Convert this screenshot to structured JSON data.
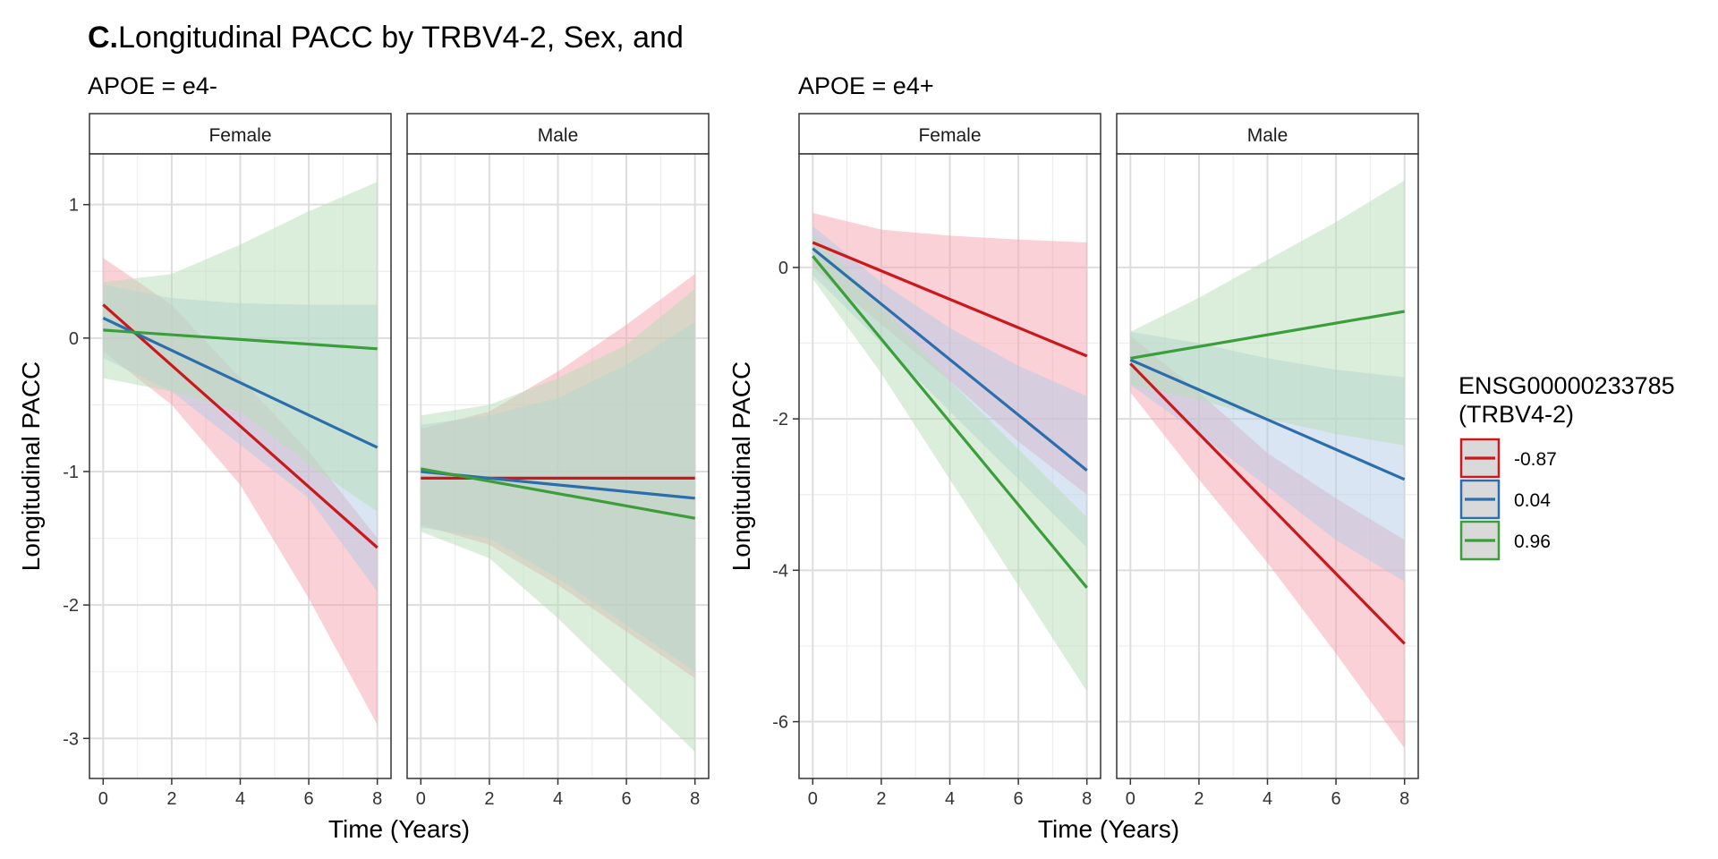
{
  "title_bold": "C.",
  "title_rest": "Longitudinal PACC by TRBV4-2, Sex, and",
  "legend": {
    "title_line1": "ENSG00000233785",
    "title_line2": "(TRBV4-2)",
    "items": [
      {
        "label": "-0.87",
        "color": "#CB181D"
      },
      {
        "label": "0.04",
        "color": "#2C6DAC"
      },
      {
        "label": "0.96",
        "color": "#3A9E3A"
      }
    ]
  },
  "colors": {
    "-0.87": {
      "line": "#CB181D",
      "fill": "#F4A3AE"
    },
    "0.04": {
      "line": "#2C6DAC",
      "fill": "#B3CBE6"
    },
    "0.96": {
      "line": "#3A9E3A",
      "fill": "#B7DDB7"
    },
    "strip_bg": "#FFFFFF",
    "grid_major": "#DDDDDD",
    "grid_minor": "#EEEEEE"
  },
  "chart_data": [
    {
      "type": "line",
      "subtitle": "APOE = e4-",
      "xlabel": "Time (Years)",
      "ylabel": "Longitudinal PACC",
      "xlim": [
        -0.4,
        8.4
      ],
      "ylim": [
        -3.3,
        1.38
      ],
      "x_ticks": [
        0,
        2,
        4,
        6,
        8
      ],
      "y_ticks": [
        1,
        0,
        -1,
        -2,
        -3
      ],
      "y_tick_labels": [
        "1",
        "0",
        "-1",
        "-2",
        "-3"
      ],
      "panels": [
        {
          "strip": "Female",
          "series": [
            {
              "name": "-0.87",
              "x": [
                0,
                8
              ],
              "y": [
                0.25,
                -1.57
              ],
              "band_x": [
                0,
                2,
                4,
                6,
                8
              ],
              "band_lower": [
                -0.1,
                -0.5,
                -1.1,
                -1.95,
                -2.9
              ],
              "band_upper": [
                0.6,
                0.25,
                -0.3,
                -0.85,
                -1.5
              ]
            },
            {
              "name": "0.04",
              "x": [
                0,
                8
              ],
              "y": [
                0.15,
                -0.82
              ],
              "band_x": [
                0,
                2,
                4,
                6,
                8
              ],
              "band_lower": [
                -0.15,
                -0.4,
                -0.8,
                -1.2,
                -1.9
              ],
              "band_upper": [
                0.4,
                0.3,
                0.26,
                0.25,
                0.25
              ]
            },
            {
              "name": "0.96",
              "x": [
                0,
                8
              ],
              "y": [
                0.06,
                -0.08
              ],
              "band_x": [
                0,
                2,
                4,
                6,
                8
              ],
              "band_lower": [
                -0.3,
                -0.4,
                -0.55,
                -0.95,
                -1.3
              ],
              "band_upper": [
                0.42,
                0.48,
                0.7,
                0.95,
                1.17
              ]
            }
          ]
        },
        {
          "strip": "Male",
          "series": [
            {
              "name": "-0.87",
              "x": [
                0,
                8
              ],
              "y": [
                -1.05,
                -1.05
              ],
              "band_x": [
                0,
                2,
                4,
                6,
                8
              ],
              "band_lower": [
                -1.4,
                -1.55,
                -1.85,
                -2.2,
                -2.55
              ],
              "band_upper": [
                -0.68,
                -0.55,
                -0.25,
                0.1,
                0.48
              ]
            },
            {
              "name": "0.04",
              "x": [
                0,
                8
              ],
              "y": [
                -1.0,
                -1.2
              ],
              "band_x": [
                0,
                2,
                4,
                6,
                8
              ],
              "band_lower": [
                -1.42,
                -1.5,
                -1.8,
                -2.15,
                -2.5
              ],
              "band_upper": [
                -0.65,
                -0.58,
                -0.45,
                -0.2,
                0.12
              ]
            },
            {
              "name": "0.96",
              "x": [
                0,
                8
              ],
              "y": [
                -0.98,
                -1.35
              ],
              "band_x": [
                0,
                2,
                4,
                6,
                8
              ],
              "band_lower": [
                -1.45,
                -1.65,
                -2.1,
                -2.6,
                -3.1
              ],
              "band_upper": [
                -0.58,
                -0.5,
                -0.3,
                -0.05,
                0.37
              ]
            }
          ]
        }
      ]
    },
    {
      "type": "line",
      "subtitle": "APOE = e4+",
      "xlabel": "Time (Years)",
      "ylabel": "Longitudinal PACC",
      "xlim": [
        -0.4,
        8.4
      ],
      "ylim": [
        -6.75,
        1.5
      ],
      "x_ticks": [
        0,
        2,
        4,
        6,
        8
      ],
      "y_ticks": [
        0,
        -2,
        -4,
        -6
      ],
      "y_tick_labels": [
        "0",
        "-2",
        "-4",
        "-6"
      ],
      "panels": [
        {
          "strip": "Female",
          "series": [
            {
              "name": "-0.87",
              "x": [
                0,
                8
              ],
              "y": [
                0.33,
                -1.17
              ],
              "band_x": [
                0,
                2,
                4,
                6,
                8
              ],
              "band_lower": [
                0.0,
                -0.75,
                -1.5,
                -2.3,
                -3.0
              ],
              "band_upper": [
                0.72,
                0.5,
                0.42,
                0.37,
                0.33
              ]
            },
            {
              "name": "0.04",
              "x": [
                0,
                8
              ],
              "y": [
                0.25,
                -2.68
              ],
              "band_x": [
                0,
                2,
                4,
                6,
                8
              ],
              "band_lower": [
                -0.1,
                -1.0,
                -1.9,
                -2.8,
                -3.7
              ],
              "band_upper": [
                0.55,
                -0.2,
                -0.8,
                -1.3,
                -1.7
              ]
            },
            {
              "name": "0.96",
              "x": [
                0,
                8
              ],
              "y": [
                0.15,
                -4.23
              ],
              "band_x": [
                0,
                2,
                4,
                6,
                8
              ],
              "band_lower": [
                -0.15,
                -1.4,
                -2.8,
                -4.2,
                -5.6
              ],
              "band_upper": [
                0.45,
                -0.5,
                -1.5,
                -2.4,
                -3.3
              ]
            }
          ]
        },
        {
          "strip": "Male",
          "series": [
            {
              "name": "-0.87",
              "x": [
                0,
                8
              ],
              "y": [
                -1.27,
                -4.97
              ],
              "band_x": [
                0,
                2,
                4,
                6,
                8
              ],
              "band_lower": [
                -1.65,
                -2.8,
                -3.9,
                -5.1,
                -6.35
              ],
              "band_upper": [
                -0.9,
                -1.65,
                -2.45,
                -3.05,
                -3.6
              ]
            },
            {
              "name": "0.04",
              "x": [
                0,
                8
              ],
              "y": [
                -1.22,
                -2.8
              ],
              "band_x": [
                0,
                2,
                4,
                6,
                8
              ],
              "band_lower": [
                -1.55,
                -2.2,
                -2.9,
                -3.6,
                -4.15
              ],
              "band_upper": [
                -0.85,
                -1.0,
                -1.2,
                -1.35,
                -1.45
              ]
            },
            {
              "name": "0.96",
              "x": [
                0,
                8
              ],
              "y": [
                -1.2,
                -0.58
              ],
              "band_x": [
                0,
                2,
                4,
                6,
                8
              ],
              "band_lower": [
                -1.55,
                -1.75,
                -2.0,
                -2.2,
                -2.35
              ],
              "band_upper": [
                -0.85,
                -0.4,
                0.1,
                0.6,
                1.15
              ]
            }
          ]
        }
      ]
    }
  ]
}
